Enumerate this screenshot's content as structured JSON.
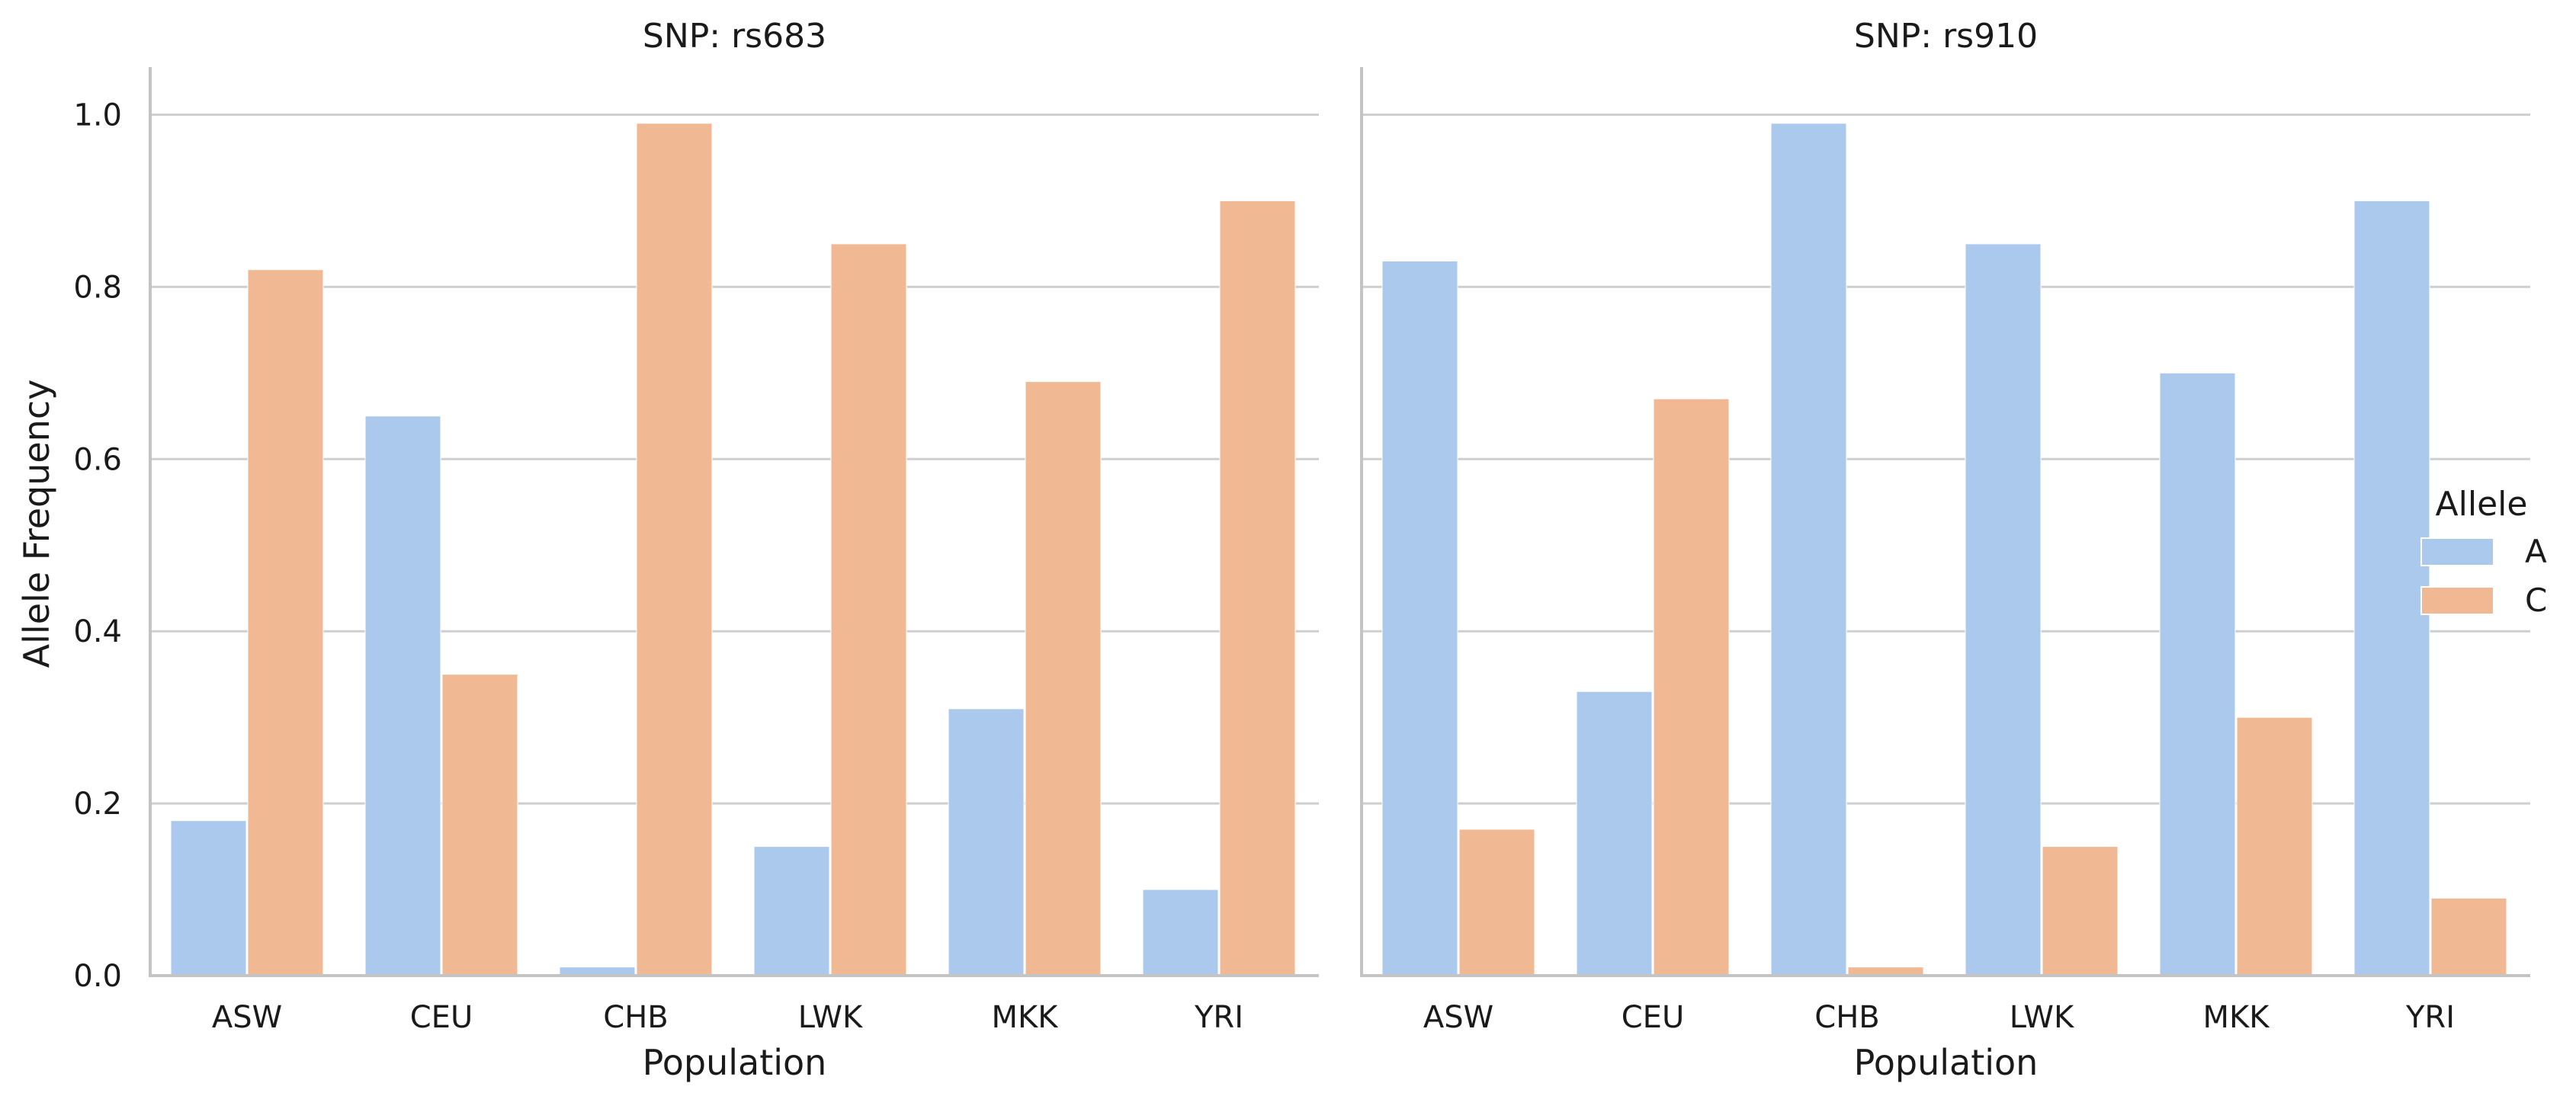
{
  "chart_data": [
    {
      "type": "bar",
      "title": "SNP: rs683",
      "xlabel": "Population",
      "ylabel": "Allele Frequency",
      "categories": [
        "ASW",
        "CEU",
        "CHB",
        "LWK",
        "MKK",
        "YRI"
      ],
      "series": [
        {
          "name": "A",
          "color": "#abc9ed",
          "values": [
            0.18,
            0.65,
            0.01,
            0.15,
            0.31,
            0.1
          ]
        },
        {
          "name": "C",
          "color": "#f0b893",
          "values": [
            0.82,
            0.35,
            0.99,
            0.85,
            0.69,
            0.9
          ]
        }
      ],
      "ylim": [
        0,
        1.05
      ],
      "yticks": [
        "0.0",
        "0.2",
        "0.4",
        "0.6",
        "0.8",
        "1.0"
      ],
      "grid": "horizontal"
    },
    {
      "type": "bar",
      "title": "SNP: rs910",
      "xlabel": "Population",
      "ylabel": "",
      "categories": [
        "ASW",
        "CEU",
        "CHB",
        "LWK",
        "MKK",
        "YRI"
      ],
      "series": [
        {
          "name": "A",
          "color": "#abc9ed",
          "values": [
            0.83,
            0.33,
            0.99,
            0.85,
            0.7,
            0.9
          ]
        },
        {
          "name": "C",
          "color": "#f0b893",
          "values": [
            0.17,
            0.67,
            0.01,
            0.15,
            0.3,
            0.09
          ]
        }
      ],
      "ylim": [
        0,
        1.05
      ],
      "yticks": [
        "0.0",
        "0.2",
        "0.4",
        "0.6",
        "0.8",
        "1.0"
      ],
      "grid": "horizontal"
    }
  ],
  "legend": {
    "title": "Allele",
    "placement": "right",
    "entries": [
      {
        "label": "A",
        "color": "#abc9ed"
      },
      {
        "label": "C",
        "color": "#f0b893"
      }
    ]
  },
  "colors": {
    "grid": "#cfcfcf",
    "axis": "#c4c4c4",
    "text": "#1a1a1a"
  }
}
